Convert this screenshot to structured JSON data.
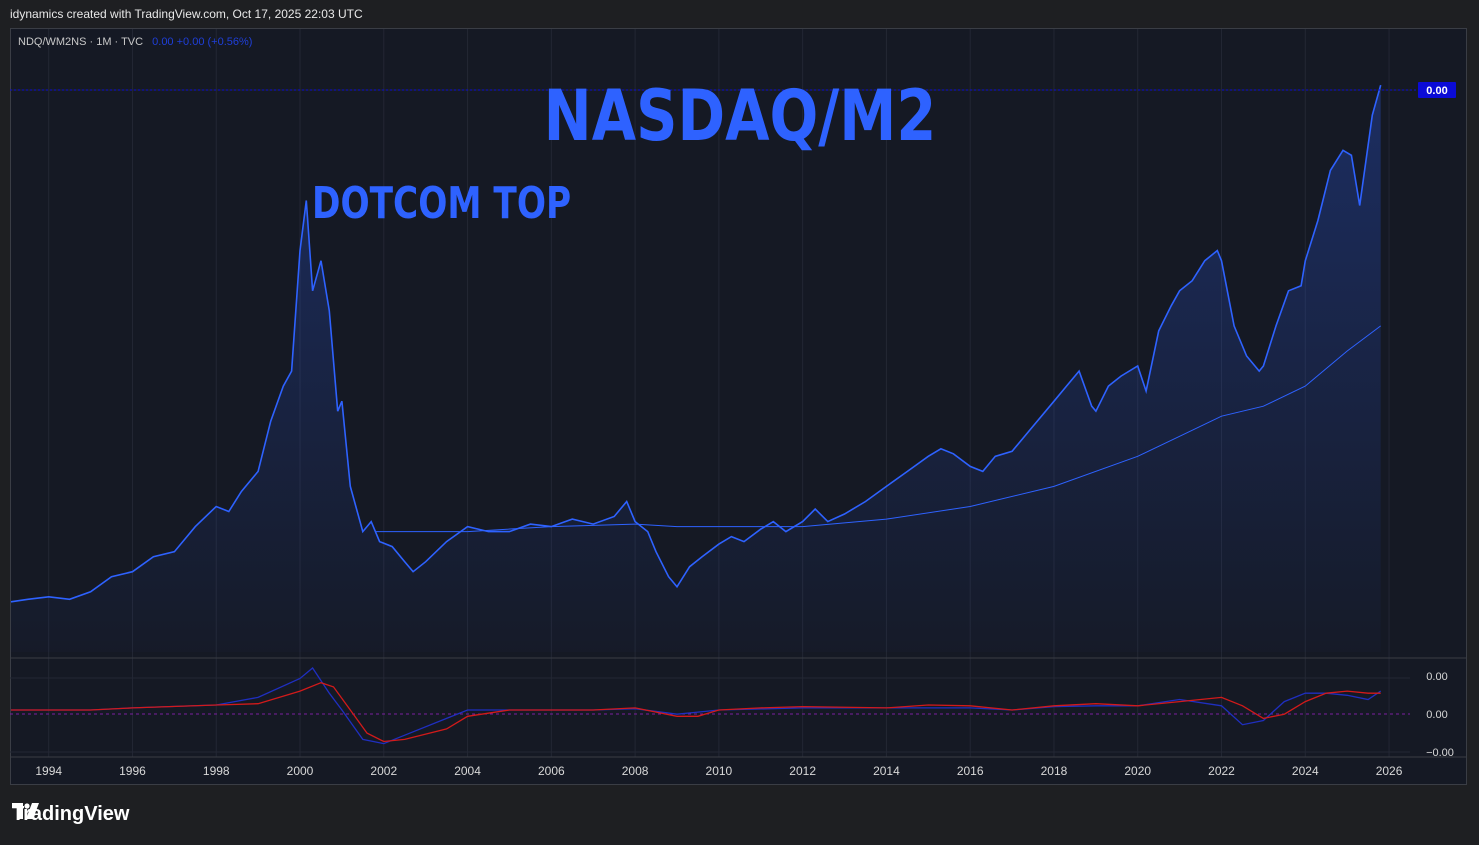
{
  "header": {
    "credit": "idynamics created with TradingView.com, Oct 17, 2025 22:03 UTC"
  },
  "legend": {
    "symbol": "NDQ/WM2NS · 1M · TVC",
    "values": "0.00 +0.00 (+0.56%)"
  },
  "annotations": {
    "title": "NASDAQ/M2",
    "dotcom": "DOTCOM TOP"
  },
  "price_label": "0.00",
  "osc_labels": [
    "0.00",
    "0.00",
    "−0.00"
  ],
  "footer": {
    "brand": "TradingView",
    "logo_icon": "tradingview-logo-icon"
  },
  "colors": {
    "line": "#2e62ff",
    "ma": "#2e62ff",
    "osc_red": "#d21a1a",
    "osc_blue": "#1f2fc0",
    "label_bg": "#0b0bd6",
    "annotation": "#2e62ff"
  },
  "chart_data": [
    {
      "type": "area",
      "title": "NASDAQ/M2",
      "x_ticks": [
        "1994",
        "1996",
        "1998",
        "2000",
        "2002",
        "2004",
        "2006",
        "2008",
        "2010",
        "2012",
        "2014",
        "2016",
        "2018",
        "2020",
        "2022",
        "2024",
        "2026"
      ],
      "xlim": [
        1993.1,
        2026.5
      ],
      "series": [
        {
          "name": "NDQ/WM2NS",
          "points": [
            [
              1993.1,
              0.1
            ],
            [
              1993.5,
              0.105
            ],
            [
              1994.0,
              0.11
            ],
            [
              1994.5,
              0.105
            ],
            [
              1995.0,
              0.12
            ],
            [
              1995.5,
              0.15
            ],
            [
              1996.0,
              0.16
            ],
            [
              1996.5,
              0.19
            ],
            [
              1997.0,
              0.2
            ],
            [
              1997.5,
              0.25
            ],
            [
              1998.0,
              0.29
            ],
            [
              1998.3,
              0.28
            ],
            [
              1998.6,
              0.32
            ],
            [
              1999.0,
              0.36
            ],
            [
              1999.3,
              0.46
            ],
            [
              1999.6,
              0.53
            ],
            [
              1999.8,
              0.56
            ],
            [
              2000.0,
              0.8
            ],
            [
              2000.15,
              0.9
            ],
            [
              2000.3,
              0.72
            ],
            [
              2000.5,
              0.78
            ],
            [
              2000.7,
              0.68
            ],
            [
              2000.9,
              0.48
            ],
            [
              2001.0,
              0.5
            ],
            [
              2001.2,
              0.33
            ],
            [
              2001.5,
              0.24
            ],
            [
              2001.7,
              0.26
            ],
            [
              2001.9,
              0.22
            ],
            [
              2002.2,
              0.21
            ],
            [
              2002.5,
              0.18
            ],
            [
              2002.7,
              0.16
            ],
            [
              2003.0,
              0.18
            ],
            [
              2003.5,
              0.22
            ],
            [
              2004.0,
              0.25
            ],
            [
              2004.5,
              0.24
            ],
            [
              2005.0,
              0.24
            ],
            [
              2005.5,
              0.255
            ],
            [
              2006.0,
              0.25
            ],
            [
              2006.5,
              0.265
            ],
            [
              2007.0,
              0.255
            ],
            [
              2007.5,
              0.27
            ],
            [
              2007.8,
              0.3
            ],
            [
              2008.0,
              0.26
            ],
            [
              2008.3,
              0.24
            ],
            [
              2008.5,
              0.2
            ],
            [
              2008.8,
              0.15
            ],
            [
              2009.0,
              0.13
            ],
            [
              2009.3,
              0.17
            ],
            [
              2009.6,
              0.19
            ],
            [
              2010.0,
              0.215
            ],
            [
              2010.3,
              0.23
            ],
            [
              2010.6,
              0.22
            ],
            [
              2011.0,
              0.245
            ],
            [
              2011.3,
              0.26
            ],
            [
              2011.6,
              0.24
            ],
            [
              2012.0,
              0.26
            ],
            [
              2012.3,
              0.285
            ],
            [
              2012.6,
              0.26
            ],
            [
              2013.0,
              0.275
            ],
            [
              2013.5,
              0.3
            ],
            [
              2014.0,
              0.33
            ],
            [
              2014.5,
              0.36
            ],
            [
              2015.0,
              0.39
            ],
            [
              2015.3,
              0.405
            ],
            [
              2015.6,
              0.395
            ],
            [
              2016.0,
              0.37
            ],
            [
              2016.3,
              0.36
            ],
            [
              2016.6,
              0.39
            ],
            [
              2017.0,
              0.4
            ],
            [
              2017.5,
              0.45
            ],
            [
              2018.0,
              0.5
            ],
            [
              2018.3,
              0.53
            ],
            [
              2018.6,
              0.56
            ],
            [
              2018.9,
              0.49
            ],
            [
              2019.0,
              0.48
            ],
            [
              2019.3,
              0.53
            ],
            [
              2019.6,
              0.55
            ],
            [
              2020.0,
              0.57
            ],
            [
              2020.2,
              0.52
            ],
            [
              2020.5,
              0.64
            ],
            [
              2020.8,
              0.69
            ],
            [
              2021.0,
              0.72
            ],
            [
              2021.3,
              0.74
            ],
            [
              2021.6,
              0.78
            ],
            [
              2021.9,
              0.8
            ],
            [
              2022.0,
              0.78
            ],
            [
              2022.3,
              0.65
            ],
            [
              2022.6,
              0.59
            ],
            [
              2022.9,
              0.56
            ],
            [
              2023.0,
              0.57
            ],
            [
              2023.3,
              0.65
            ],
            [
              2023.6,
              0.72
            ],
            [
              2023.9,
              0.73
            ],
            [
              2024.0,
              0.78
            ],
            [
              2024.3,
              0.86
            ],
            [
              2024.6,
              0.96
            ],
            [
              2024.9,
              1.0
            ],
            [
              2025.1,
              0.99
            ],
            [
              2025.3,
              0.89
            ],
            [
              2025.6,
              1.07
            ],
            [
              2025.8,
              1.13
            ]
          ]
        },
        {
          "name": "MA",
          "points": [
            [
              2001.8,
              0.24
            ],
            [
              2004.0,
              0.24
            ],
            [
              2006.0,
              0.25
            ],
            [
              2008.0,
              0.255
            ],
            [
              2009.0,
              0.25
            ],
            [
              2010.0,
              0.25
            ],
            [
              2012.0,
              0.25
            ],
            [
              2014.0,
              0.265
            ],
            [
              2016.0,
              0.29
            ],
            [
              2018.0,
              0.33
            ],
            [
              2020.0,
              0.39
            ],
            [
              2021.0,
              0.43
            ],
            [
              2022.0,
              0.47
            ],
            [
              2023.0,
              0.49
            ],
            [
              2024.0,
              0.53
            ],
            [
              2025.0,
              0.6
            ],
            [
              2025.8,
              0.65
            ]
          ]
        }
      ],
      "ylim": [
        0.0,
        1.18
      ]
    },
    {
      "type": "line",
      "x_ticks": [
        "1994",
        "1996",
        "1998",
        "2000",
        "2002",
        "2004",
        "2006",
        "2008",
        "2010",
        "2012",
        "2014",
        "2016",
        "2018",
        "2020",
        "2022",
        "2024",
        "2026"
      ],
      "xlim": [
        1993.1,
        2026.5
      ],
      "y_ticks": [
        "0.00",
        "0.00",
        "−0.00"
      ],
      "ylim": [
        -1.0,
        1.0
      ],
      "series": [
        {
          "name": "signal",
          "points": [
            [
              1993.1,
              0.0
            ],
            [
              1995.0,
              0.0
            ],
            [
              1996.0,
              0.05
            ],
            [
              1998.0,
              0.12
            ],
            [
              1999.0,
              0.15
            ],
            [
              2000.0,
              0.45
            ],
            [
              2000.5,
              0.65
            ],
            [
              2000.8,
              0.55
            ],
            [
              2001.2,
              0.0
            ],
            [
              2001.6,
              -0.55
            ],
            [
              2002.0,
              -0.75
            ],
            [
              2002.5,
              -0.7
            ],
            [
              2003.5,
              -0.45
            ],
            [
              2004.0,
              -0.15
            ],
            [
              2005.0,
              0.0
            ],
            [
              2007.0,
              0.0
            ],
            [
              2008.0,
              0.05
            ],
            [
              2009.0,
              -0.15
            ],
            [
              2009.5,
              -0.15
            ],
            [
              2010.0,
              0.0
            ],
            [
              2011.0,
              0.05
            ],
            [
              2012.0,
              0.08
            ],
            [
              2014.0,
              0.05
            ],
            [
              2015.0,
              0.12
            ],
            [
              2016.0,
              0.1
            ],
            [
              2017.0,
              0.0
            ],
            [
              2018.0,
              0.1
            ],
            [
              2019.0,
              0.15
            ],
            [
              2020.0,
              0.1
            ],
            [
              2021.0,
              0.2
            ],
            [
              2022.0,
              0.3
            ],
            [
              2022.5,
              0.1
            ],
            [
              2023.0,
              -0.2
            ],
            [
              2023.5,
              -0.1
            ],
            [
              2024.0,
              0.2
            ],
            [
              2024.5,
              0.4
            ],
            [
              2025.0,
              0.45
            ],
            [
              2025.5,
              0.4
            ],
            [
              2025.8,
              0.4
            ]
          ]
        },
        {
          "name": "oscillator",
          "points": [
            [
              1993.1,
              0.0
            ],
            [
              1995.0,
              0.0
            ],
            [
              1996.0,
              0.05
            ],
            [
              1998.0,
              0.12
            ],
            [
              1999.0,
              0.3
            ],
            [
              2000.0,
              0.75
            ],
            [
              2000.3,
              1.0
            ],
            [
              2000.7,
              0.4
            ],
            [
              2001.0,
              0.0
            ],
            [
              2001.5,
              -0.7
            ],
            [
              2002.0,
              -0.8
            ],
            [
              2002.5,
              -0.6
            ],
            [
              2003.5,
              -0.2
            ],
            [
              2004.0,
              0.0
            ],
            [
              2007.0,
              0.0
            ],
            [
              2008.0,
              0.03
            ],
            [
              2009.0,
              -0.1
            ],
            [
              2009.5,
              -0.05
            ],
            [
              2010.0,
              0.0
            ],
            [
              2012.0,
              0.05
            ],
            [
              2014.0,
              0.05
            ],
            [
              2016.0,
              0.05
            ],
            [
              2017.0,
              0.0
            ],
            [
              2018.0,
              0.08
            ],
            [
              2019.0,
              0.1
            ],
            [
              2020.0,
              0.1
            ],
            [
              2021.0,
              0.25
            ],
            [
              2022.0,
              0.1
            ],
            [
              2022.5,
              -0.35
            ],
            [
              2023.0,
              -0.25
            ],
            [
              2023.5,
              0.2
            ],
            [
              2024.0,
              0.4
            ],
            [
              2024.5,
              0.4
            ],
            [
              2025.0,
              0.35
            ],
            [
              2025.5,
              0.25
            ],
            [
              2025.8,
              0.45
            ]
          ]
        }
      ]
    }
  ]
}
